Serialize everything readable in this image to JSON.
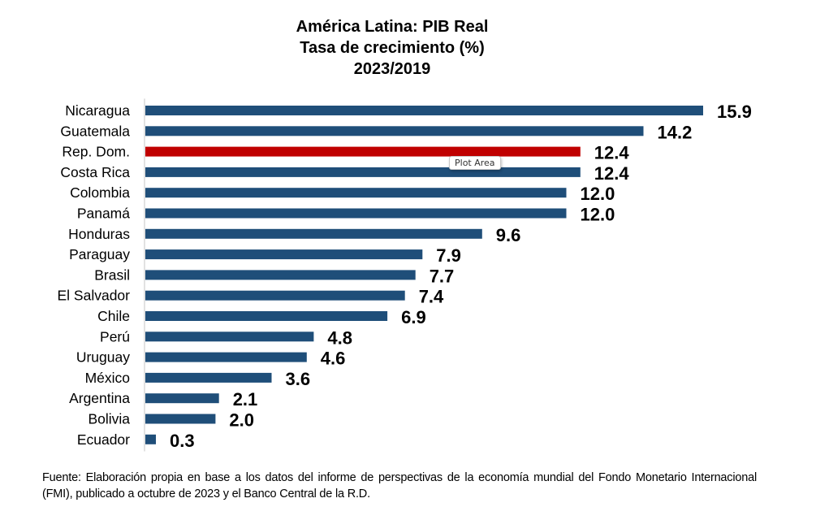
{
  "chart_data": {
    "type": "bar",
    "orientation": "horizontal",
    "title": [
      "América Latina: PIB Real",
      "Tasa de crecimiento (%)",
      "2023/2019"
    ],
    "xlabel": "",
    "ylabel": "",
    "categories": [
      "Nicaragua",
      "Guatemala",
      "Rep. Dom.",
      "Costa Rica",
      "Colombia",
      "Panamá",
      "Honduras",
      "Paraguay",
      "Brasil",
      "El Salvador",
      "Chile",
      "Perú",
      "Uruguay",
      "México",
      "Argentina",
      "Bolivia",
      "Ecuador"
    ],
    "values": [
      15.9,
      14.2,
      12.4,
      12.4,
      12.0,
      12.0,
      9.6,
      7.9,
      7.7,
      7.4,
      6.9,
      4.8,
      4.6,
      3.6,
      2.1,
      2.0,
      0.3
    ],
    "value_labels": [
      "15.9",
      "14.2",
      "12.4",
      "12.4",
      "12.0",
      "12.0",
      "9.6",
      "7.9",
      "7.7",
      "7.4",
      "6.9",
      "4.8",
      "4.6",
      "3.6",
      "2.1",
      "2.0",
      "0.3"
    ],
    "highlight_category": "Rep. Dom.",
    "xlim": [
      0,
      15.9
    ],
    "grid": false,
    "legend": "none",
    "colors": {
      "bar": "#1F4E79",
      "highlight": "#C00000",
      "axis": "#D9D9D9"
    }
  },
  "tooltip": "Plot Area",
  "source": "Fuente: Elaboración propia en base a los datos del informe de perspectivas de la economía mundial del Fondo Monetario Internacional (FMI), publicado a octubre de 2023 y el Banco Central de la R.D."
}
